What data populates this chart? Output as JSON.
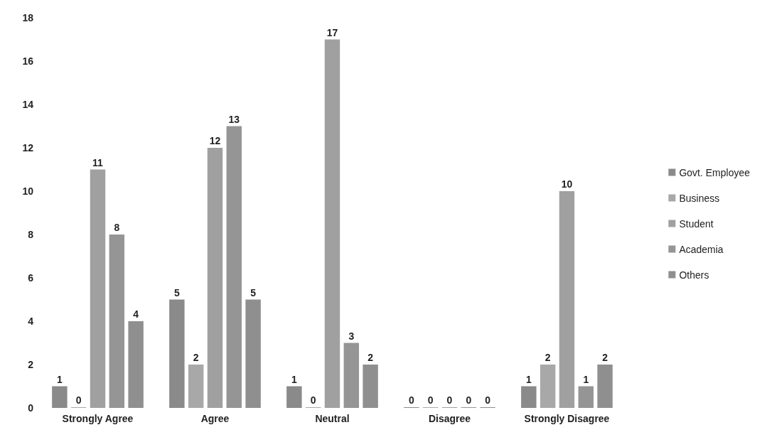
{
  "chart_data": {
    "type": "bar",
    "categories": [
      "Strongly Agree",
      "Agree",
      "Neutral",
      "Disagree",
      "Strongly Disagree"
    ],
    "series": [
      {
        "name": "Govt. Employee",
        "color": "#8a8a8a",
        "values": [
          1,
          5,
          1,
          0,
          1
        ]
      },
      {
        "name": "Business",
        "color": "#a8a8a8",
        "values": [
          0,
          2,
          0,
          0,
          2
        ]
      },
      {
        "name": "Student",
        "color": "#a0a0a0",
        "values": [
          11,
          12,
          17,
          0,
          10
        ]
      },
      {
        "name": "Academia",
        "color": "#959595",
        "values": [
          8,
          13,
          3,
          0,
          1
        ]
      },
      {
        "name": "Others",
        "color": "#8f8f8f",
        "values": [
          4,
          5,
          2,
          0,
          2
        ]
      }
    ],
    "ylim": [
      0,
      18
    ],
    "yticks": [
      0,
      2,
      4,
      6,
      8,
      10,
      12,
      14,
      16,
      18
    ],
    "grid": false,
    "legend": "right",
    "data_labels": true
  }
}
